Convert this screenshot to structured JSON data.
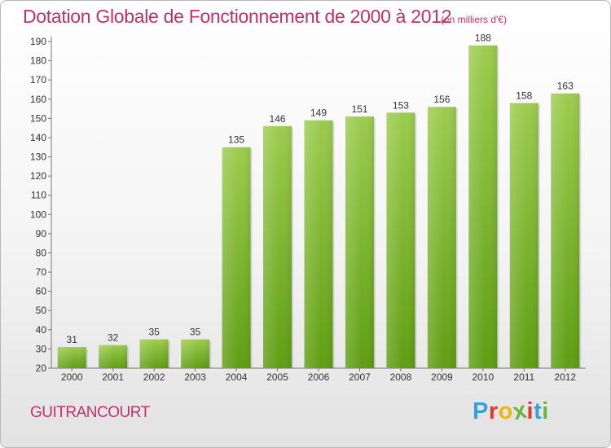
{
  "header": {
    "title": "Dotation Globale de Fonctionnement de 2000 à 2012",
    "subtitle": "(en milliers d'€)"
  },
  "footer": {
    "commune": "GUITRANCOURT",
    "logo_text": "Proxiti",
    "logo_colors": [
      "#3aa0d8",
      "#e8352f",
      "#f2b316",
      "#6cb33f",
      "#e8352f",
      "#3aa0d8",
      "#6cb33f"
    ]
  },
  "colors": {
    "bar_top": "#9ccc4e",
    "bar_bottom": "#5e9e12",
    "text": "#333333",
    "accent": "#c0306a"
  },
  "chart_data": {
    "type": "bar",
    "categories": [
      "2000",
      "2001",
      "2002",
      "2003",
      "2004",
      "2005",
      "2006",
      "2007",
      "2008",
      "2009",
      "2010",
      "2011",
      "2012"
    ],
    "values": [
      31,
      32,
      35,
      35,
      135,
      146,
      149,
      151,
      153,
      156,
      188,
      158,
      163
    ],
    "ylim": [
      20,
      190
    ],
    "yticks": [
      20,
      30,
      40,
      50,
      60,
      70,
      80,
      90,
      100,
      110,
      120,
      130,
      140,
      150,
      160,
      170,
      180,
      190
    ],
    "grid": false,
    "data_labels": true
  }
}
